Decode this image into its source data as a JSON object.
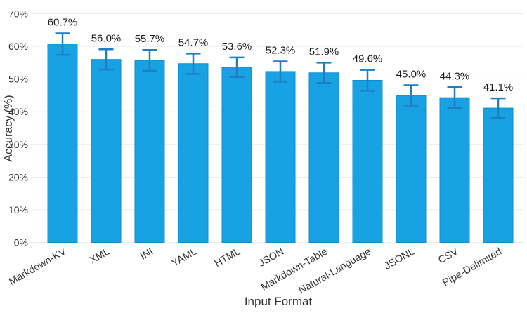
{
  "chart_data": {
    "type": "bar",
    "title": "",
    "xlabel": "Input Format",
    "ylabel": "Accuracy (%)",
    "categories": [
      "Markdown-KV",
      "XML",
      "INI",
      "YAML",
      "HTML",
      "JSON",
      "Markdown-Table",
      "Natural-Language",
      "JSONL",
      "CSV",
      "Pipe-Delimited"
    ],
    "values": [
      60.7,
      56.0,
      55.7,
      54.7,
      53.6,
      52.3,
      51.9,
      49.6,
      45.0,
      44.3,
      41.1
    ],
    "errors": [
      3.3,
      3.1,
      3.2,
      3.1,
      3.0,
      3.1,
      3.1,
      3.2,
      3.1,
      3.2,
      3.0
    ],
    "value_labels": [
      "60.7%",
      "56.0%",
      "55.7%",
      "54.7%",
      "53.6%",
      "52.3%",
      "51.9%",
      "49.6%",
      "45.0%",
      "44.3%",
      "41.1%"
    ],
    "ytick_values": [
      0,
      10,
      20,
      30,
      40,
      50,
      60,
      70
    ],
    "ytick_labels": [
      "0%",
      "10%",
      "20%",
      "30%",
      "40%",
      "50%",
      "60%",
      "70%"
    ],
    "ylim": [
      0,
      70
    ],
    "grid": "horizontal",
    "legend": "none",
    "colors": {
      "bar_fill": "#18a2e4",
      "bar_border": "#0e8ccc",
      "error_bar": "#1e7fc0",
      "gridline": "#ececee",
      "tick_text": "#333333",
      "value_text": "#1c1c1c"
    }
  }
}
